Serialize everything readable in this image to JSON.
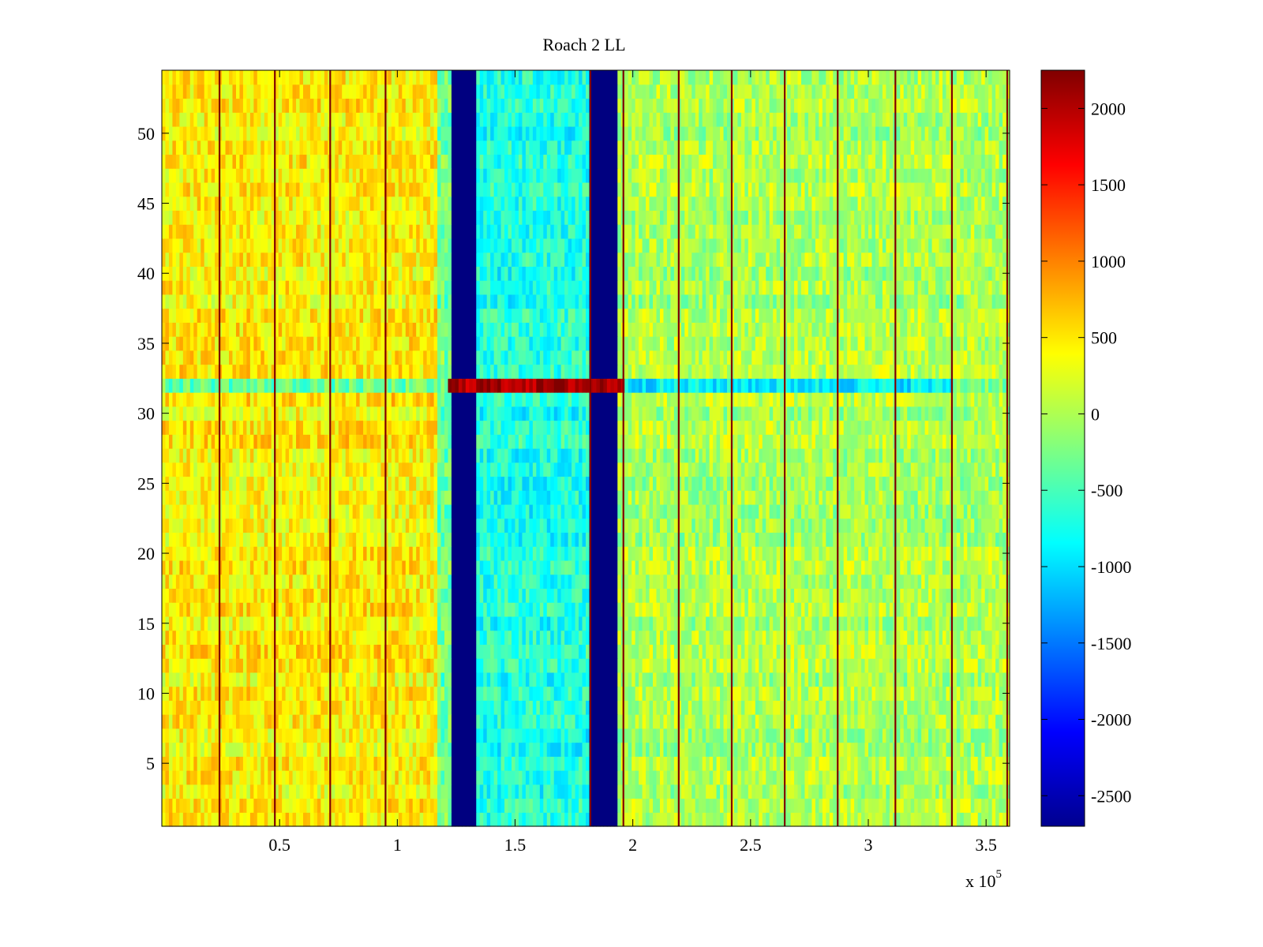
{
  "chart_data": {
    "type": "heatmap",
    "title": "Roach 2 LL",
    "xlabel": "",
    "ylabel": "",
    "x_multiplier_label": "x 10",
    "x_multiplier_exponent": "5",
    "xlim": [
      0,
      3.6
    ],
    "ylim": [
      0.5,
      54.5
    ],
    "xticks": [
      0.5,
      1,
      1.5,
      2,
      2.5,
      3,
      3.5
    ],
    "xtick_labels": [
      "0.5",
      "1",
      "1.5",
      "2",
      "2.5",
      "3",
      "3.5"
    ],
    "yticks": [
      5,
      10,
      15,
      20,
      25,
      30,
      35,
      40,
      45,
      50
    ],
    "ytick_labels": [
      "5",
      "10",
      "15",
      "20",
      "25",
      "30",
      "35",
      "40",
      "45",
      "50"
    ],
    "rows": 54,
    "colorbar": {
      "colormap": "jet",
      "clim": [
        -2700,
        2250
      ],
      "ticks": [
        2000,
        1500,
        1000,
        500,
        0,
        -500,
        -1000,
        -1500,
        -2000,
        -2500
      ],
      "tick_labels": [
        "2000",
        "1500",
        "1000",
        "500",
        "0",
        "-500",
        "-1000",
        "-1500",
        "-2000",
        "-2500"
      ]
    },
    "regions": [
      {
        "x_range": [
          0.0,
          1.17
        ],
        "mean_value": 450,
        "description": "high band"
      },
      {
        "x_range": [
          1.17,
          1.23
        ],
        "mean_value": -300
      },
      {
        "x_range": [
          1.23,
          1.34
        ],
        "mean_value": -2700,
        "description": "saturated low band"
      },
      {
        "x_range": [
          1.34,
          1.82
        ],
        "mean_value": -700
      },
      {
        "x_range": [
          1.82,
          1.93
        ],
        "mean_value": -2700,
        "description": "saturated low band"
      },
      {
        "x_range": [
          1.93,
          3.6
        ],
        "mean_value": 0
      }
    ],
    "row_32": [
      {
        "x_range": [
          0.0,
          1.22
        ],
        "mean_value": -450
      },
      {
        "x_range": [
          1.22,
          1.96
        ],
        "mean_value": 2000
      },
      {
        "x_range": [
          1.96,
          3.36
        ],
        "mean_value": -1000
      },
      {
        "x_range": [
          3.36,
          3.6
        ],
        "mean_value": -300
      }
    ],
    "vertical_lines_x": [
      0.245,
      0.48,
      0.715,
      0.95,
      1.82,
      1.96,
      2.195,
      2.42,
      2.645,
      2.87,
      3.115,
      3.355,
      3.59
    ]
  }
}
